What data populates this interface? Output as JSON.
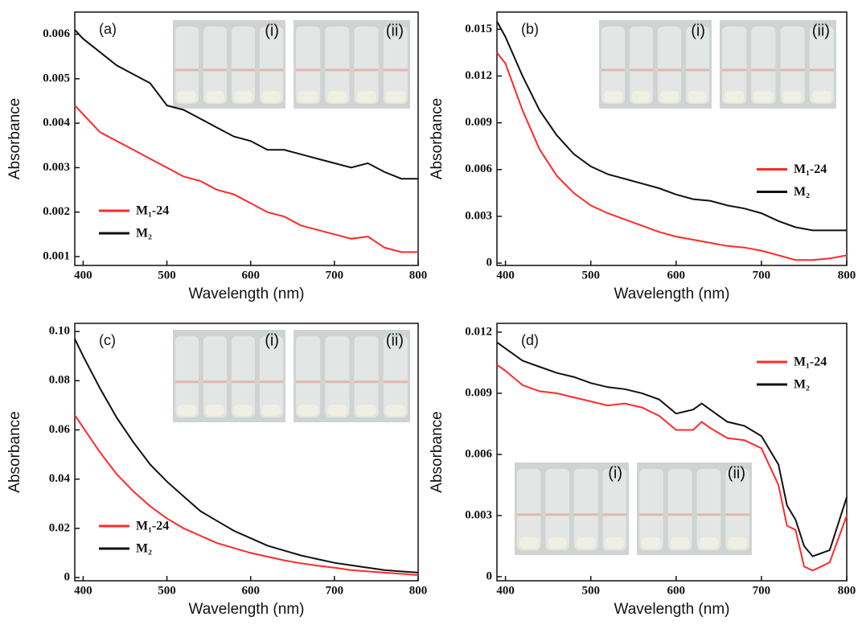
{
  "chart_data": [
    {
      "type": "line",
      "label": "(a)",
      "xlabel": "Wavelength (nm)",
      "ylabel": "Absorbance",
      "x": [
        390,
        400,
        420,
        440,
        460,
        480,
        500,
        520,
        540,
        560,
        580,
        600,
        620,
        640,
        660,
        680,
        700,
        720,
        740,
        760,
        780,
        800
      ],
      "xlim": [
        390,
        800
      ],
      "xticks": [
        400,
        500,
        600,
        700,
        800
      ],
      "ylim": [
        0.0008,
        0.0065
      ],
      "yticks": [
        0.001,
        0.002,
        0.003,
        0.004,
        0.005,
        0.006
      ],
      "legend": "lower left",
      "inset_labels": [
        "(i)",
        "(ii)"
      ],
      "series": [
        {
          "name": "M₁-24",
          "color": "#ff2a2a",
          "values": [
            0.0044,
            0.0042,
            0.0038,
            0.0036,
            0.0034,
            0.0032,
            0.003,
            0.0028,
            0.0027,
            0.0025,
            0.0024,
            0.0022,
            0.002,
            0.0019,
            0.0017,
            0.0016,
            0.0015,
            0.0014,
            0.00145,
            0.0012,
            0.0011,
            0.0011
          ]
        },
        {
          "name": "M₂",
          "color": "#111111",
          "values": [
            0.0061,
            0.0059,
            0.0056,
            0.0053,
            0.0051,
            0.0049,
            0.0044,
            0.0043,
            0.0041,
            0.0039,
            0.0037,
            0.0036,
            0.0034,
            0.0034,
            0.0033,
            0.0032,
            0.0031,
            0.003,
            0.0031,
            0.0029,
            0.00275,
            0.00275
          ]
        }
      ]
    },
    {
      "type": "line",
      "label": "(b)",
      "xlabel": "Wavelength (nm)",
      "ylabel": "Absorbance",
      "x": [
        390,
        400,
        420,
        440,
        460,
        480,
        500,
        520,
        540,
        560,
        580,
        600,
        620,
        640,
        660,
        680,
        700,
        720,
        740,
        760,
        780,
        800
      ],
      "xlim": [
        390,
        800
      ],
      "xticks": [
        400,
        500,
        600,
        700,
        800
      ],
      "ylim": [
        -0.00015,
        0.0161
      ],
      "yticks": [
        0,
        0.003,
        0.006,
        0.009,
        0.012,
        0.015
      ],
      "legend": "center right",
      "inset_labels": [
        "(i)",
        "(ii)"
      ],
      "series": [
        {
          "name": "M₁-24",
          "color": "#ff2a2a",
          "values": [
            0.0135,
            0.0128,
            0.0098,
            0.0073,
            0.0056,
            0.0045,
            0.0037,
            0.0032,
            0.0028,
            0.0024,
            0.002,
            0.0017,
            0.0015,
            0.0013,
            0.0011,
            0.001,
            0.0008,
            0.0005,
            0.0002,
            0.0002,
            0.0003,
            0.0005
          ]
        },
        {
          "name": "M₂",
          "color": "#111111",
          "values": [
            0.0155,
            0.0145,
            0.012,
            0.0098,
            0.0082,
            0.007,
            0.0062,
            0.0057,
            0.0054,
            0.0051,
            0.0048,
            0.0044,
            0.0041,
            0.004,
            0.0037,
            0.0035,
            0.0032,
            0.0027,
            0.0023,
            0.0021,
            0.0021,
            0.0021
          ]
        }
      ]
    },
    {
      "type": "line",
      "label": "(c)",
      "xlabel": "Wavelength (nm)",
      "ylabel": "Absorbance",
      "x": [
        390,
        400,
        420,
        440,
        460,
        480,
        500,
        520,
        540,
        560,
        580,
        600,
        620,
        640,
        660,
        680,
        700,
        720,
        740,
        760,
        780,
        800
      ],
      "xlim": [
        390,
        800
      ],
      "xticks": [
        400,
        500,
        600,
        700,
        800
      ],
      "ylim": [
        -0.0013,
        0.1033
      ],
      "yticks": [
        0,
        0.02,
        0.04,
        0.06,
        0.08,
        {
          "value": 0.1,
          "label": "0.10"
        }
      ],
      "legend": "lower left",
      "inset_labels": [
        "(i)",
        "(ii)"
      ],
      "series": [
        {
          "name": "M₁-24",
          "color": "#ff2a2a",
          "values": [
            0.066,
            0.061,
            0.051,
            0.042,
            0.035,
            0.029,
            0.024,
            0.02,
            0.017,
            0.014,
            0.012,
            0.01,
            0.0085,
            0.007,
            0.0058,
            0.0048,
            0.004,
            0.003,
            0.0025,
            0.002,
            0.0015,
            0.001
          ]
        },
        {
          "name": "M₂",
          "color": "#111111",
          "values": [
            0.097,
            0.09,
            0.077,
            0.065,
            0.055,
            0.046,
            0.039,
            0.033,
            0.027,
            0.023,
            0.019,
            0.016,
            0.013,
            0.011,
            0.009,
            0.0075,
            0.006,
            0.005,
            0.004,
            0.003,
            0.0025,
            0.002
          ]
        }
      ]
    },
    {
      "type": "line",
      "label": "(d)",
      "xlabel": "Wavelength (nm)",
      "ylabel": "Absorbance",
      "x": [
        390,
        400,
        420,
        440,
        460,
        480,
        500,
        520,
        540,
        560,
        580,
        600,
        620,
        630,
        640,
        660,
        680,
        700,
        720,
        730,
        740,
        750,
        760,
        780,
        800
      ],
      "xlim": [
        390,
        800
      ],
      "xticks": [
        400,
        500,
        600,
        700,
        800
      ],
      "ylim": [
        -0.0002,
        0.01243
      ],
      "yticks": [
        0,
        0.003,
        0.006,
        0.009,
        0.012
      ],
      "legend": "upper right",
      "inset_labels": [
        "(i)",
        "(ii)"
      ],
      "series": [
        {
          "name": "M₁-24",
          "color": "#ff2a2a",
          "values": [
            0.0104,
            0.0101,
            0.0094,
            0.0091,
            0.009,
            0.0088,
            0.0086,
            0.0084,
            0.0085,
            0.0083,
            0.0079,
            0.0072,
            0.0072,
            0.0076,
            0.0073,
            0.0068,
            0.0067,
            0.0063,
            0.0045,
            0.0025,
            0.0023,
            0.0005,
            0.0003,
            0.0007,
            0.003
          ]
        },
        {
          "name": "M₂",
          "color": "#111111",
          "values": [
            0.0115,
            0.0112,
            0.0106,
            0.0103,
            0.01,
            0.0098,
            0.0095,
            0.0093,
            0.0092,
            0.009,
            0.0087,
            0.008,
            0.0082,
            0.0085,
            0.0082,
            0.0076,
            0.0074,
            0.0069,
            0.0055,
            0.0035,
            0.0028,
            0.0015,
            0.001,
            0.0013,
            0.0039
          ]
        }
      ]
    }
  ]
}
